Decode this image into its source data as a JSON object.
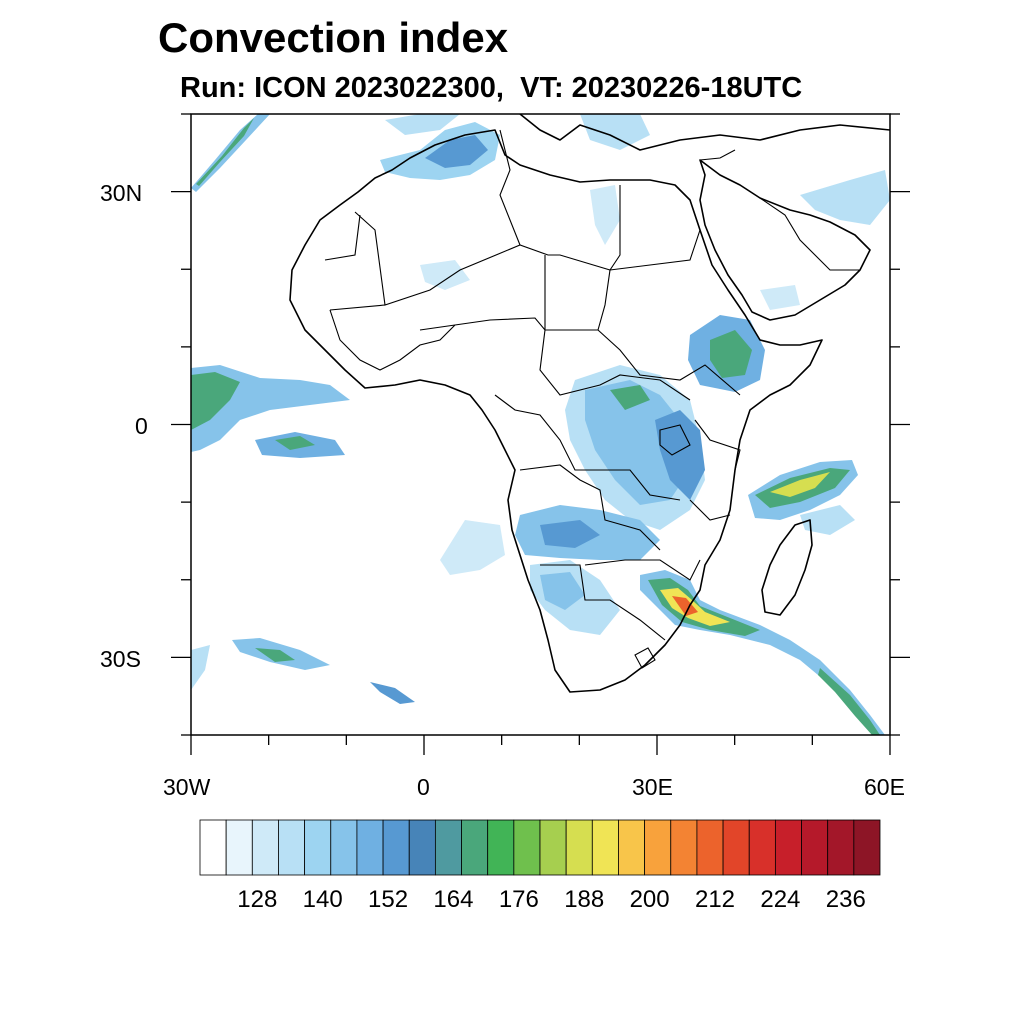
{
  "title": "Convection index",
  "subtitle": "Run: ICON 2023022300,  VT: 20230226-18UTC",
  "map": {
    "lon_range": [
      -30,
      60
    ],
    "lat_range": [
      -40,
      40
    ],
    "x_tick_labels": [
      "30W",
      "0",
      "30E",
      "60E"
    ],
    "y_tick_labels": [
      "30N",
      "0",
      "30S"
    ],
    "field": "Convection index"
  },
  "colorbar": {
    "colors": [
      "#ffffff",
      "#e8f5fc",
      "#cfeaf8",
      "#b8e0f5",
      "#9dd4f1",
      "#86c3ea",
      "#6fb0e2",
      "#5799d2",
      "#4784b8",
      "#4f9aa0",
      "#4aa77b",
      "#41b456",
      "#6fc04d",
      "#a6cf4f",
      "#d6de50",
      "#f0e455",
      "#f8c54a",
      "#f8a23c",
      "#f38333",
      "#ec632c",
      "#e24529",
      "#d8302a",
      "#c71f2a",
      "#b5192a",
      "#a31729",
      "#8d1526"
    ],
    "labels": [
      "128",
      "140",
      "152",
      "164",
      "176",
      "188",
      "200",
      "212",
      "224",
      "236"
    ]
  }
}
